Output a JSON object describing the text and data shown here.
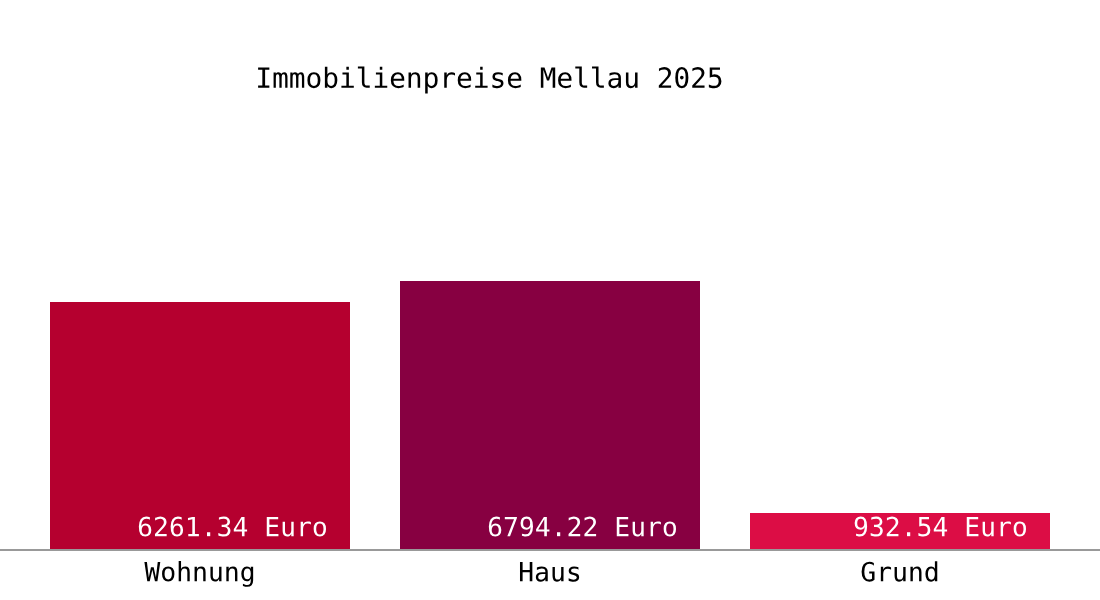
{
  "chart_data": {
    "type": "bar",
    "title": "Immobilienpreise Mellau 2025",
    "categories": [
      "Wohnung",
      "Haus",
      "Grund"
    ],
    "values": [
      6261.34,
      6794.22,
      932.54
    ],
    "colors": [
      "#b5002f",
      "#870041",
      "#dc0d45"
    ],
    "value_labels": [
      "6261.34 Euro",
      "6794.22 Euro",
      "932.54 Euro"
    ],
    "grid": false,
    "legend": false
  }
}
